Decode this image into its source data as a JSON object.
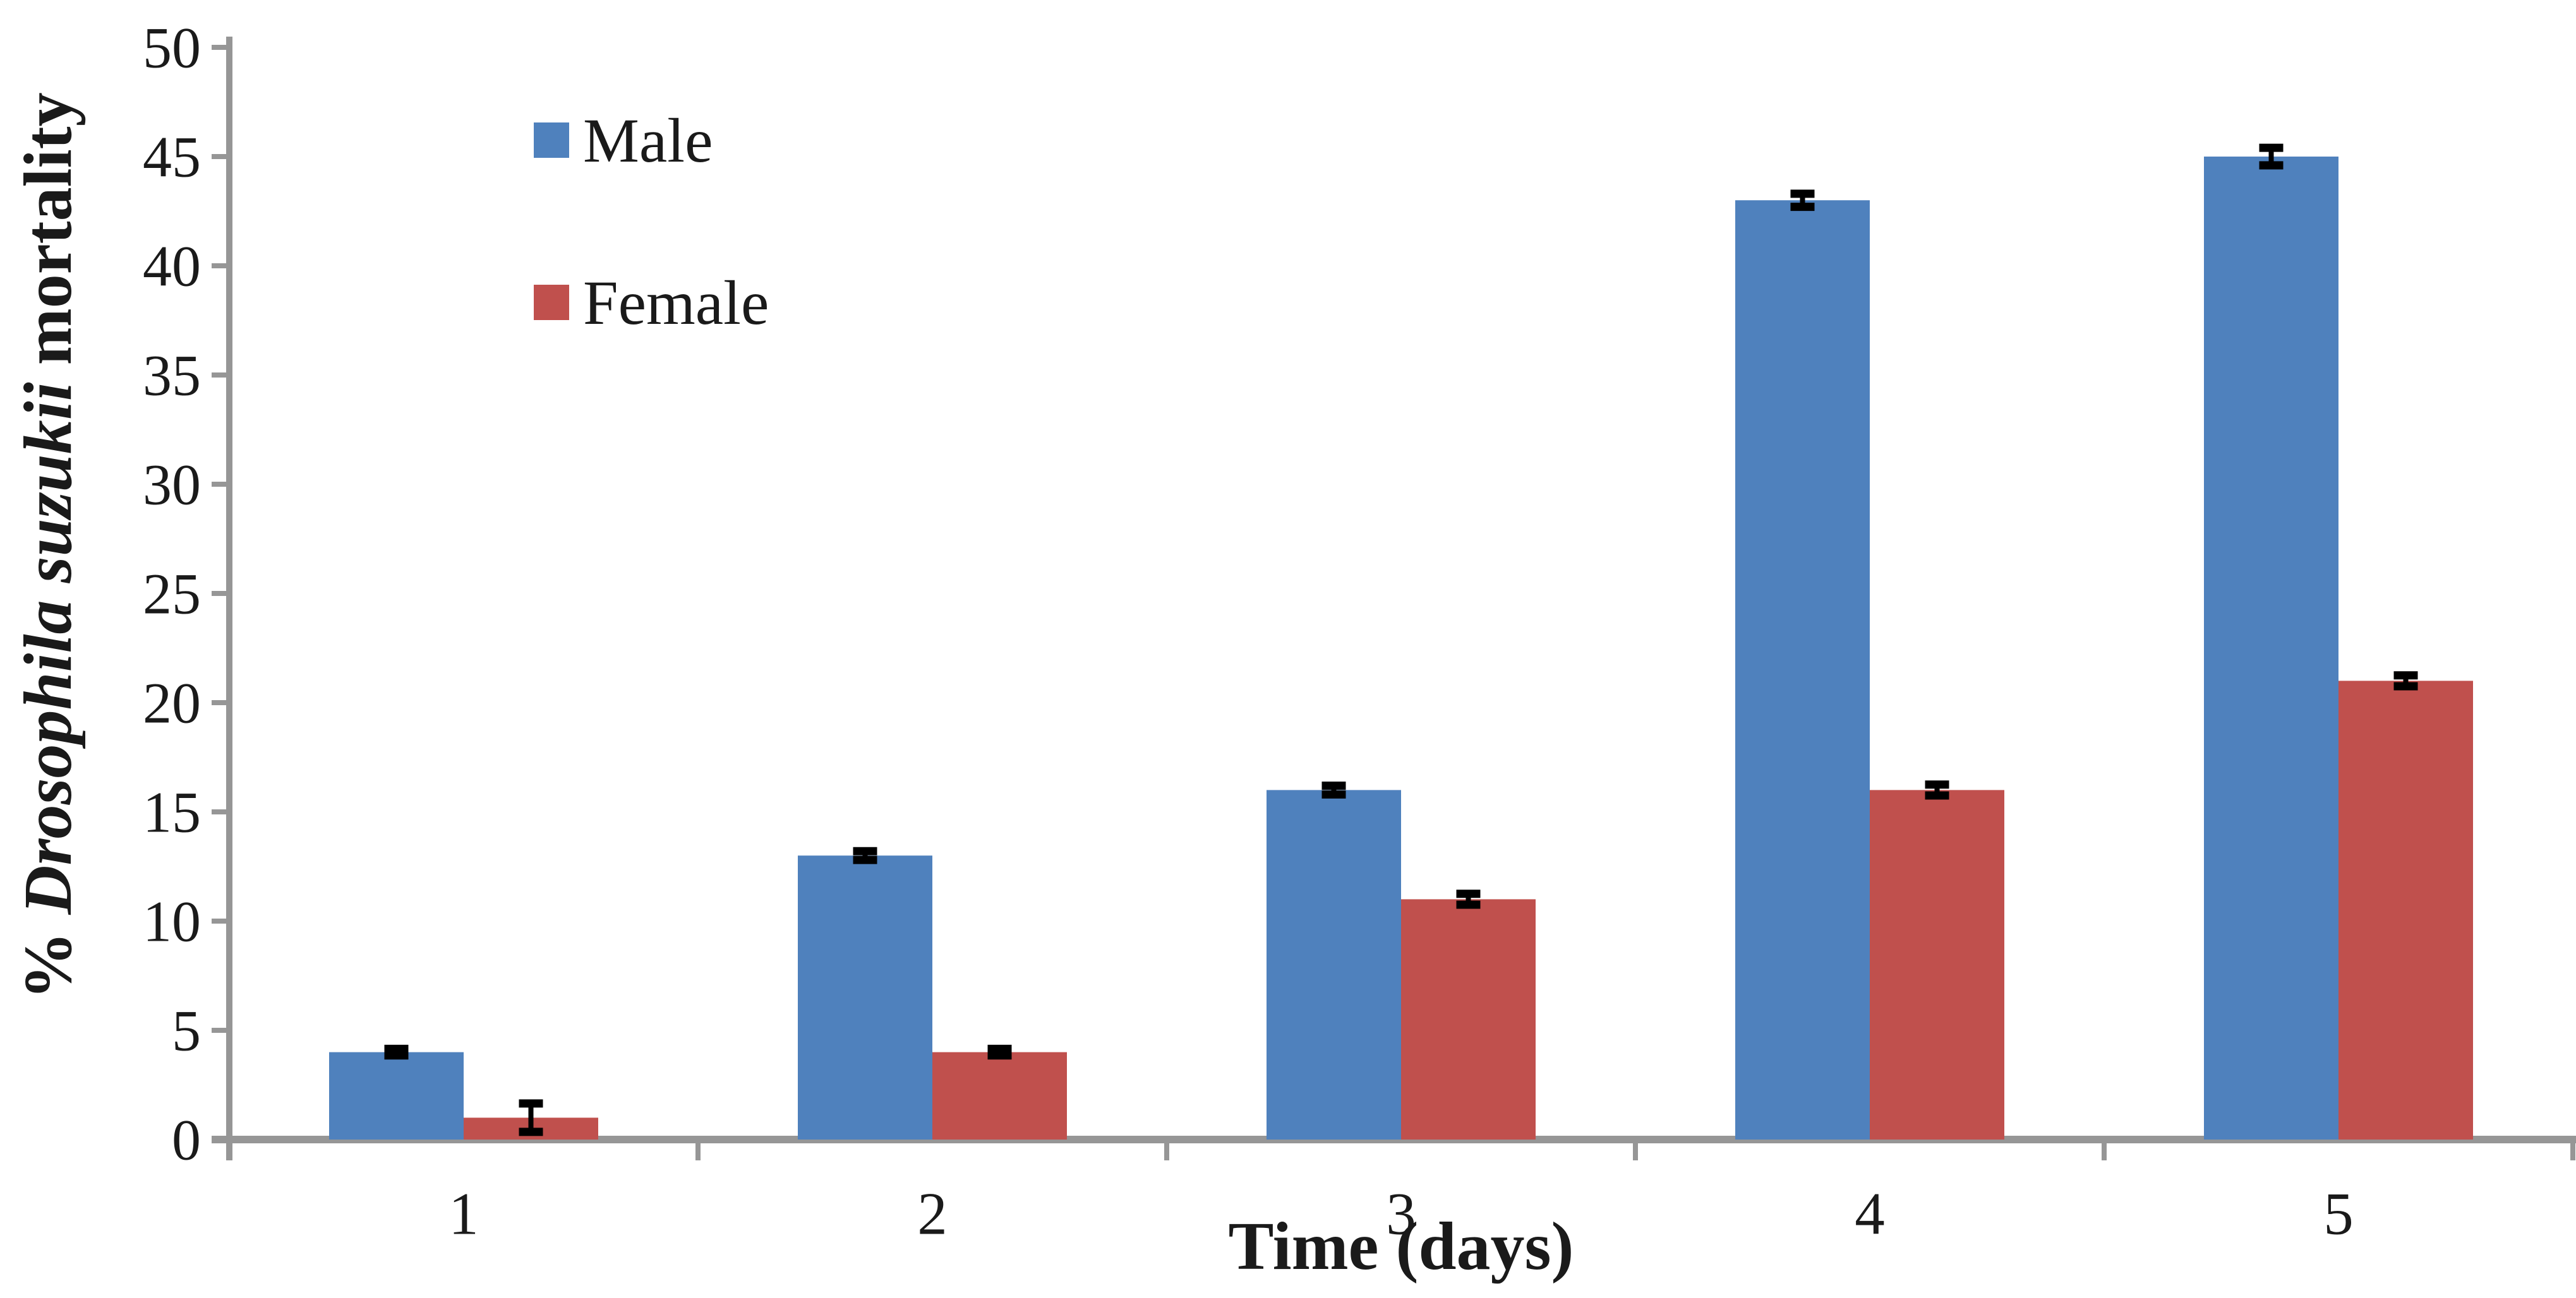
{
  "chart_data": {
    "type": "bar",
    "title": "",
    "categories": [
      "1",
      "2",
      "3",
      "4",
      "5"
    ],
    "series": [
      {
        "name": "Male",
        "color": "#4F81BD",
        "values": [
          4,
          13,
          16,
          43,
          45
        ],
        "errors": [
          0.15,
          0.2,
          0.2,
          0.3,
          0.4
        ]
      },
      {
        "name": "Female",
        "color": "#C0504D",
        "values": [
          1,
          4,
          11,
          16,
          21
        ],
        "errors": [
          0.65,
          0.15,
          0.25,
          0.25,
          0.25
        ]
      }
    ],
    "xlabel": "Time (days)",
    "ylabel_full": "% Drosophila suzukii mortality",
    "ylabel_parts": {
      "prefix": "% ",
      "italic": "Drosophila suzukii",
      "suffix": " mortality"
    },
    "ylim": [
      0,
      50
    ],
    "ytick_step": 5,
    "yticks": [
      "0",
      "5",
      "10",
      "15",
      "20",
      "25",
      "30",
      "35",
      "40",
      "45",
      "50"
    ],
    "grid": false,
    "legend_position": "upper-left-inside",
    "colors": {
      "axis": "#969696",
      "error_bar": "#000000",
      "text": "#1a1a1a",
      "background": "#ffffff"
    }
  }
}
